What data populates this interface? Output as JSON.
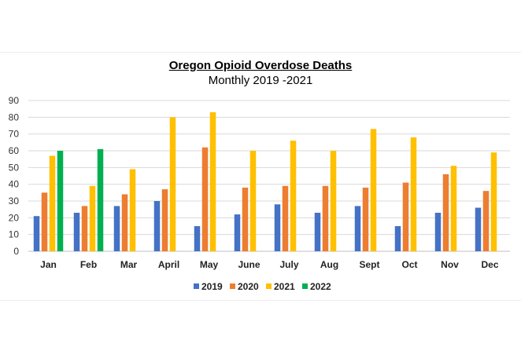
{
  "chart_data": {
    "type": "bar",
    "title": "Oregon Opioid Overdose Deaths",
    "subtitle": "Monthly 2019 -2021",
    "xlabel": "",
    "ylabel": "",
    "ylim": [
      0,
      90
    ],
    "yticks": [
      0,
      10,
      20,
      30,
      40,
      50,
      60,
      70,
      80,
      90
    ],
    "grid": true,
    "legend": "bottom",
    "categories": [
      "Jan",
      "Feb",
      "Mar",
      "April",
      "May",
      "June",
      "July",
      "Aug",
      "Sept",
      "Oct",
      "Nov",
      "Dec"
    ],
    "series": [
      {
        "name": "2019",
        "color": "#4472c4",
        "values": [
          21,
          23,
          27,
          30,
          15,
          22,
          28,
          23,
          27,
          15,
          23,
          26
        ]
      },
      {
        "name": "2020",
        "color": "#ed7d31",
        "values": [
          35,
          27,
          34,
          37,
          62,
          38,
          39,
          39,
          38,
          41,
          46,
          36
        ]
      },
      {
        "name": "2021",
        "color": "#ffc000",
        "values": [
          57,
          39,
          49,
          80,
          83,
          60,
          66,
          60,
          73,
          68,
          51,
          59
        ]
      },
      {
        "name": "2022",
        "color": "#00b050",
        "values": [
          60,
          61,
          null,
          null,
          null,
          null,
          null,
          null,
          null,
          null,
          null,
          null
        ]
      }
    ]
  }
}
